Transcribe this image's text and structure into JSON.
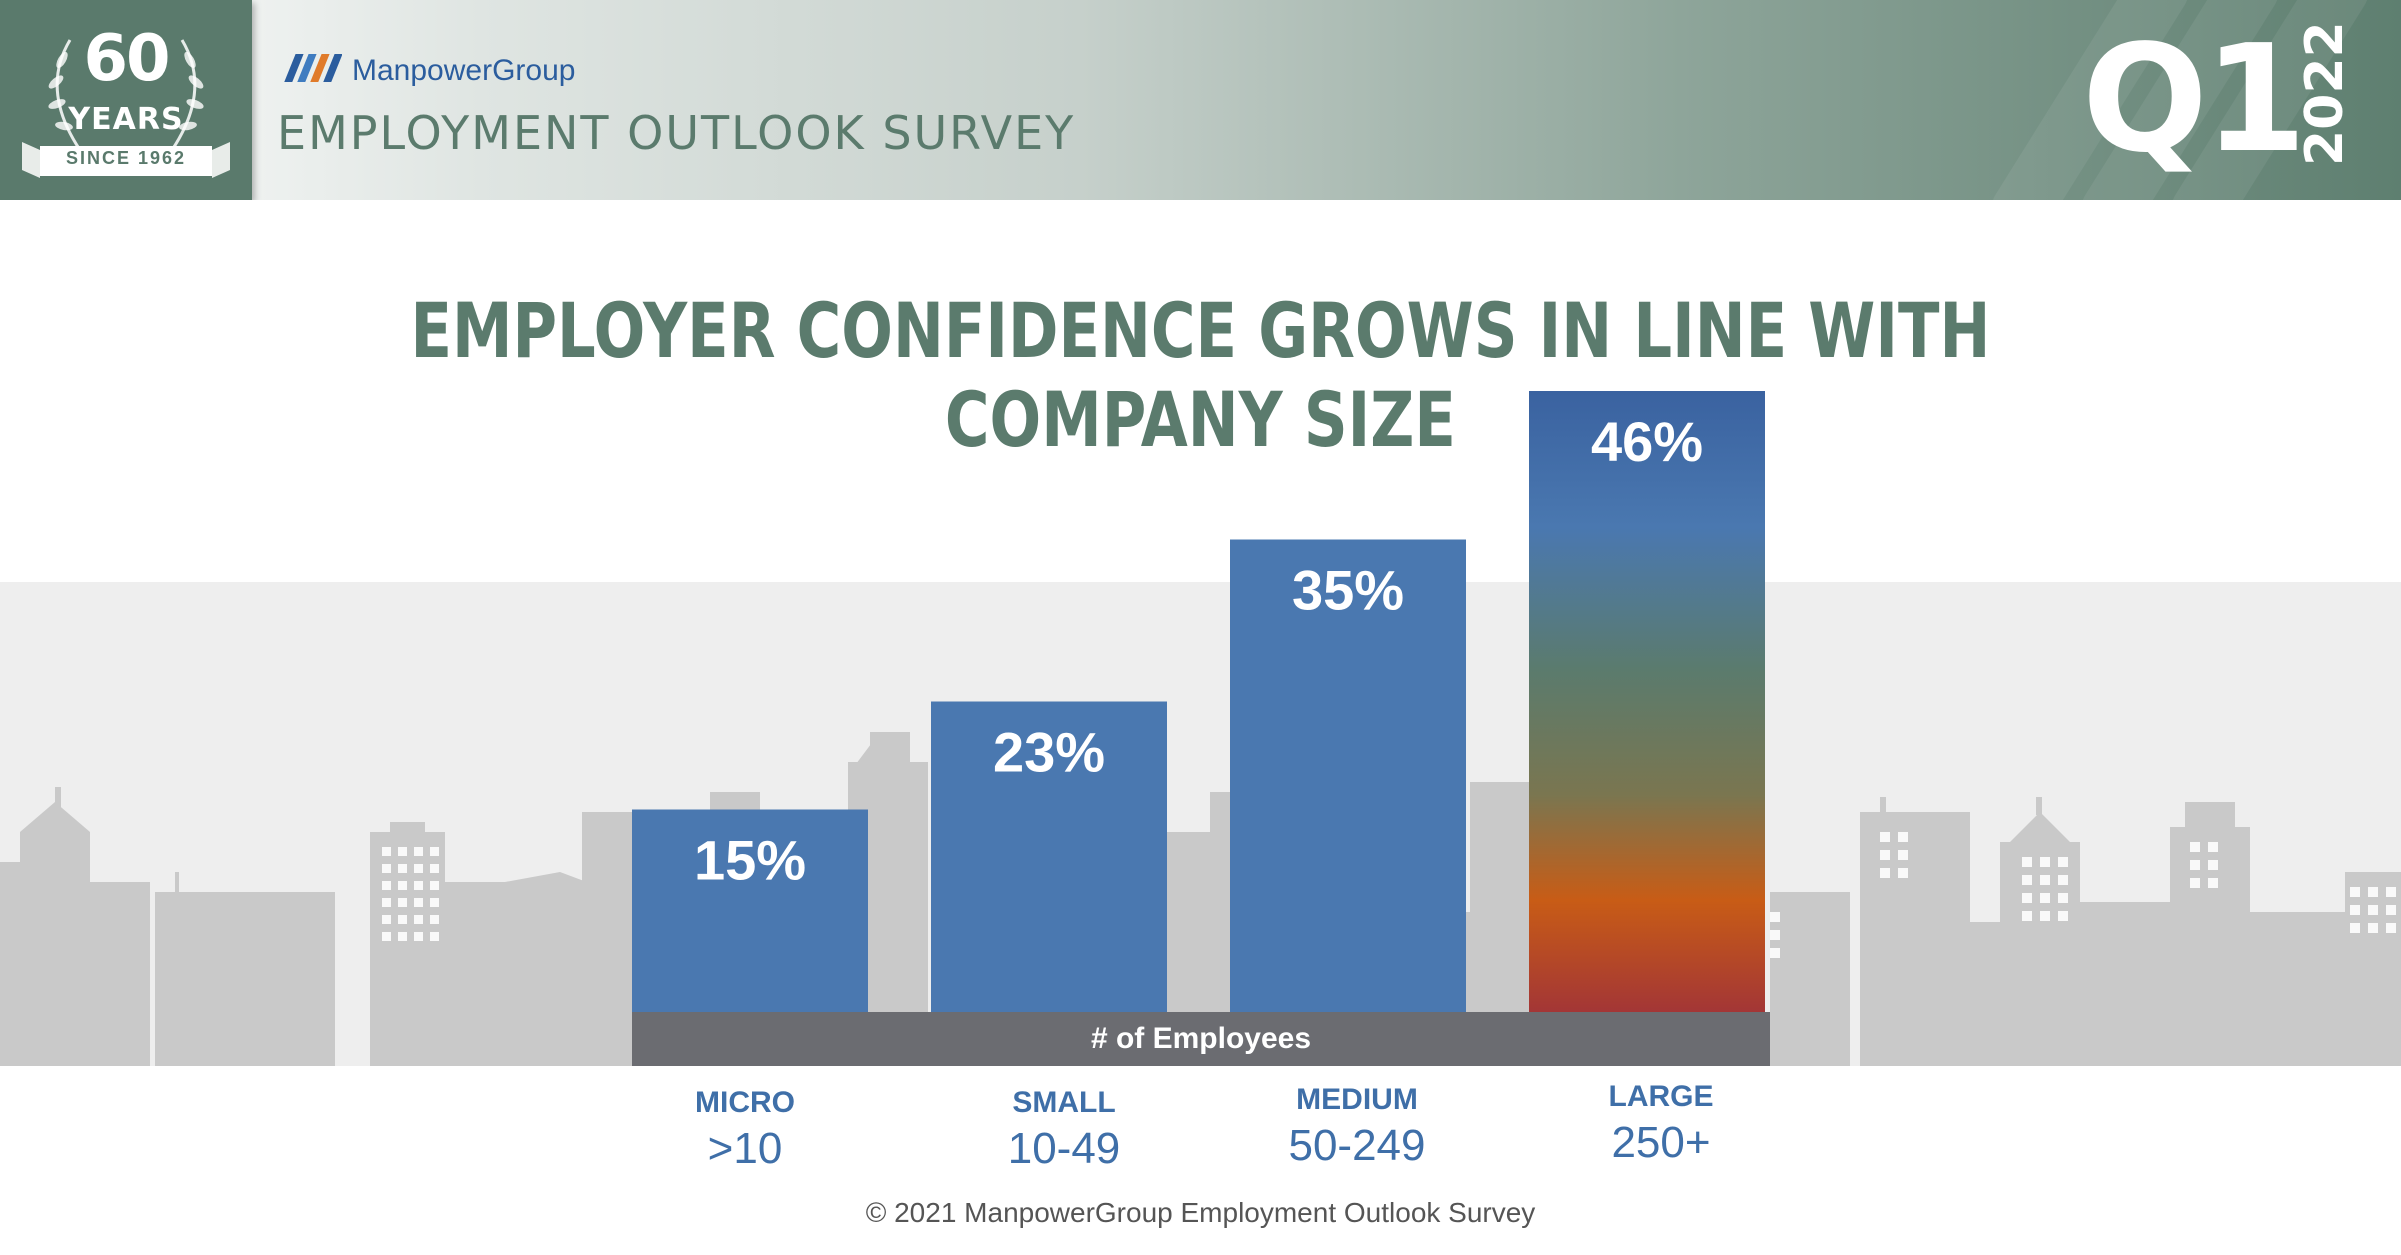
{
  "header": {
    "badge_number": "60",
    "badge_years": "YEARS",
    "badge_since": "SINCE 1962",
    "brand": "ManpowerGroup",
    "survey_title": "EMPLOYMENT OUTLOOK SURVEY",
    "quarter": "Q1",
    "year": "2022"
  },
  "colors": {
    "header_green": "#5a7a6c",
    "title_green": "#5b7b6d",
    "bar_blue": "#4a78b0",
    "axis_gray": "#6b6c71",
    "category_blue": "#3f6fa8"
  },
  "chart_data": {
    "type": "bar",
    "title": "EMPLOYER CONFIDENCE GROWS IN LINE WITH COMPANY SIZE",
    "xlabel": "# of Employees",
    "ylabel": "",
    "ylim": [
      0,
      50
    ],
    "categories": [
      "MICRO",
      "SMALL",
      "MEDIUM",
      "LARGE"
    ],
    "category_ranges": [
      ">10",
      "10-49",
      "50-249",
      "250+"
    ],
    "values": [
      15,
      23,
      35,
      46
    ],
    "value_labels": [
      "15%",
      "23%",
      "35%",
      "46%"
    ],
    "highlight": "LARGE"
  },
  "footer": "© 2021 ManpowerGroup Employment Outlook Survey"
}
